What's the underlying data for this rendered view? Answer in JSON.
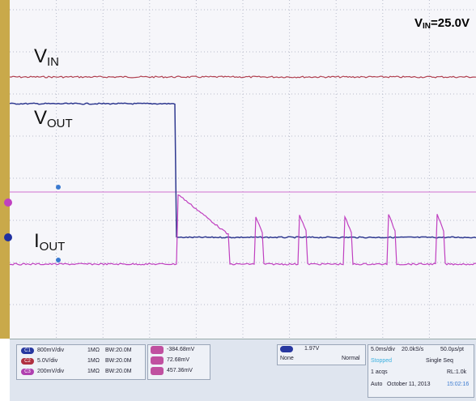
{
  "labels": {
    "vin": {
      "main": "V",
      "sub": "IN"
    },
    "vout": {
      "main": "V",
      "sub": "OUT"
    },
    "iout": {
      "main": "I",
      "sub": "OUT"
    },
    "condition": {
      "main": "V",
      "sub": "IN",
      "rest": "=25.0V"
    }
  },
  "channels": [
    {
      "badge": "C1",
      "scale": "800mV/div",
      "impedance": "1MΩ",
      "bandwidth": "BW:20.0M"
    },
    {
      "badge": "C2",
      "scale": "5.0V/div",
      "impedance": "1MΩ",
      "bandwidth": "BW:20.0M"
    },
    {
      "badge": "C3",
      "scale": "200mV/div",
      "impedance": "1MΩ",
      "bandwidth": "BW:20.0M"
    }
  ],
  "measurements": [
    "-384.68mV",
    "72.68mV",
    "457.36mV"
  ],
  "trigger": {
    "level": "1.97V",
    "mode1": "None",
    "mode2": "Normal"
  },
  "timebase": {
    "scale": "5.0ms/div",
    "rate": "20.0kS/s",
    "resolution": "50.0µs/pt",
    "status": "Stopped",
    "mode": "Single Seq",
    "acqs": "1 acqs",
    "length": "RL:1.0k",
    "trigger_mode": "Auto",
    "date": "October 11, 2013",
    "time": "15:02:16"
  }
}
